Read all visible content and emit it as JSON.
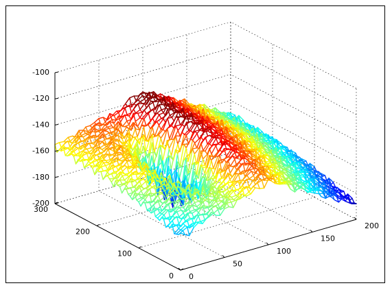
{
  "chart_data": {
    "type": "surface",
    "title": "",
    "xlabel": "",
    "ylabel": "",
    "zlabel": "",
    "grid": true,
    "colormap": "jet",
    "colormap_stops": [
      "#00008f",
      "#0000ff",
      "#00ffff",
      "#ffff00",
      "#ff0000",
      "#800000"
    ],
    "x_ticks": [
      "0",
      "50",
      "100",
      "150",
      "200"
    ],
    "x_tick_values": [
      0,
      50,
      100,
      150,
      200
    ],
    "y_ticks": [
      "0",
      "100",
      "200",
      "300"
    ],
    "y_tick_values": [
      0,
      100,
      200,
      300
    ],
    "z_ticks": [
      "-100",
      "-120",
      "-140",
      "-160",
      "-180",
      "-200"
    ],
    "z_tick_values": [
      -100,
      -120,
      -140,
      -160,
      -180,
      -200
    ],
    "xlim": [
      0,
      200
    ],
    "ylim": [
      0,
      300
    ],
    "zlim": [
      -200,
      -100
    ],
    "ridge_profile": {
      "x": 100,
      "y": [
        0,
        30,
        60,
        90,
        120,
        150,
        180,
        210,
        240,
        270,
        300
      ],
      "z": [
        -151,
        -148,
        -145,
        -142,
        -140,
        -138,
        -136,
        -135,
        -135,
        -134,
        -134
      ]
    }
  }
}
